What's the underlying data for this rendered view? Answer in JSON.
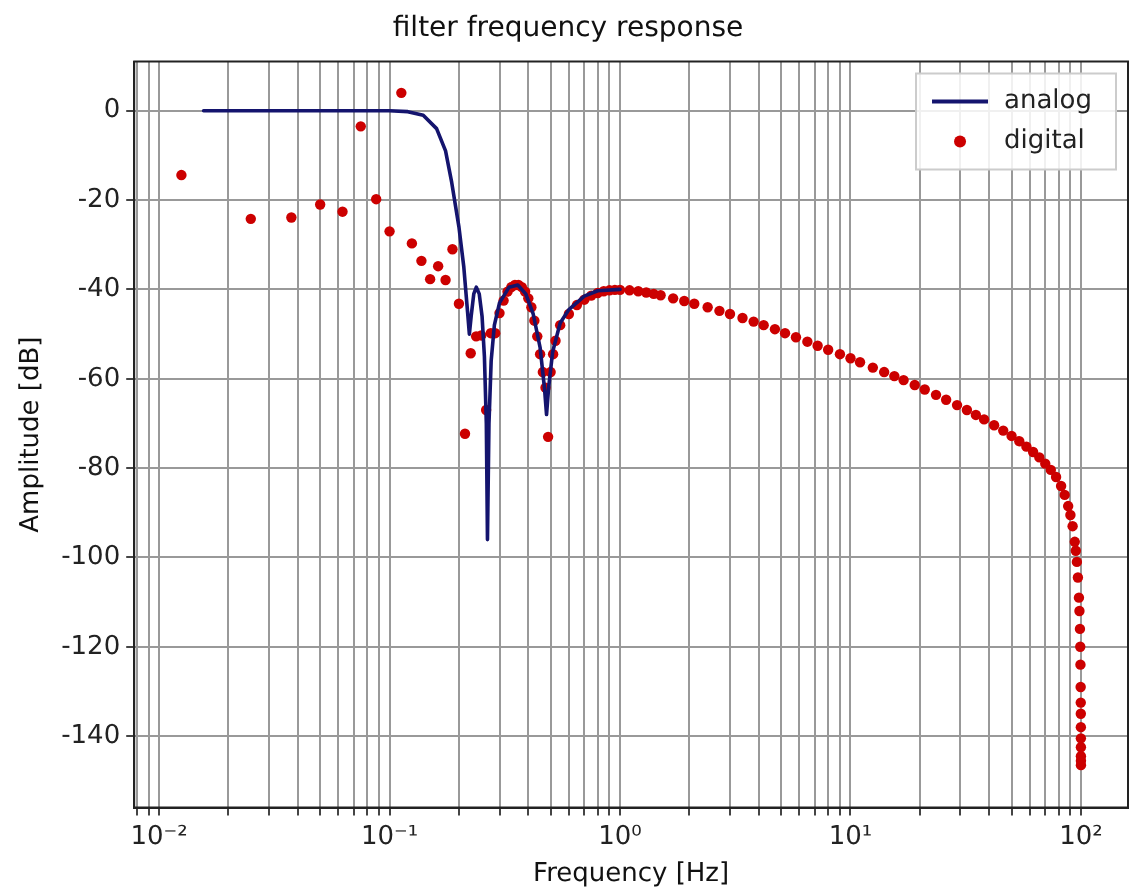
{
  "chart_data": {
    "type": "line",
    "title": "filter frequency response",
    "xlabel": "Frequency [Hz]",
    "ylabel": "Amplitude [dB]",
    "log": "x",
    "grid": true,
    "legend": "top right",
    "xlim": [
      0.0078,
      160
    ],
    "ylim": [
      -156,
      11
    ],
    "xticks": [
      {
        "value": 0.008,
        "label": null
      },
      {
        "value": 0.009,
        "label": null
      },
      {
        "value": 0.01,
        "label": "10⁻²"
      },
      {
        "value": 0.02,
        "label": null
      },
      {
        "value": 0.03,
        "label": null
      },
      {
        "value": 0.04,
        "label": null
      },
      {
        "value": 0.05,
        "label": null
      },
      {
        "value": 0.06,
        "label": null
      },
      {
        "value": 0.07,
        "label": null
      },
      {
        "value": 0.08,
        "label": null
      },
      {
        "value": 0.09,
        "label": null
      },
      {
        "value": 0.1,
        "label": "10⁻¹"
      },
      {
        "value": 0.2,
        "label": null
      },
      {
        "value": 0.3,
        "label": null
      },
      {
        "value": 0.4,
        "label": null
      },
      {
        "value": 0.5,
        "label": null
      },
      {
        "value": 0.6,
        "label": null
      },
      {
        "value": 0.7,
        "label": null
      },
      {
        "value": 0.8,
        "label": null
      },
      {
        "value": 0.9,
        "label": null
      },
      {
        "value": 1,
        "label": "10⁰"
      },
      {
        "value": 2,
        "label": null
      },
      {
        "value": 3,
        "label": null
      },
      {
        "value": 4,
        "label": null
      },
      {
        "value": 5,
        "label": null
      },
      {
        "value": 6,
        "label": null
      },
      {
        "value": 7,
        "label": null
      },
      {
        "value": 8,
        "label": null
      },
      {
        "value": 9,
        "label": null
      },
      {
        "value": 10,
        "label": "10¹"
      },
      {
        "value": 20,
        "label": null
      },
      {
        "value": 30,
        "label": null
      },
      {
        "value": 40,
        "label": null
      },
      {
        "value": 50,
        "label": null
      },
      {
        "value": 60,
        "label": null
      },
      {
        "value": 70,
        "label": null
      },
      {
        "value": 80,
        "label": null
      },
      {
        "value": 90,
        "label": null
      },
      {
        "value": 100,
        "label": "10²"
      }
    ],
    "yticks": [
      0,
      -20,
      -40,
      -60,
      -80,
      -100,
      -120,
      -140
    ],
    "series": [
      {
        "name": "analog",
        "type": "line",
        "color": "#14146e",
        "marker": "none",
        "line_style": "solid",
        "x": [
          0.0156,
          0.05,
          0.1,
          0.12,
          0.14,
          0.16,
          0.175,
          0.186,
          0.2,
          0.21,
          0.218,
          0.222,
          0.226,
          0.232,
          0.238,
          0.245,
          0.252,
          0.258,
          0.263,
          0.266,
          0.27,
          0.276,
          0.285,
          0.3,
          0.33,
          0.36,
          0.39,
          0.42,
          0.45,
          0.47,
          0.48,
          0.49,
          0.51,
          0.55,
          0.6,
          0.7,
          0.8,
          1
        ],
        "values": [
          0,
          0,
          0,
          -0.2,
          -1,
          -4,
          -9,
          -16,
          -26,
          -35,
          -45,
          -50,
          -46,
          -41,
          -39.5,
          -41,
          -46,
          -55,
          -70,
          -96,
          -70,
          -56,
          -48,
          -43,
          -39.5,
          -39,
          -41,
          -45.5,
          -53,
          -62,
          -68,
          -62,
          -54,
          -47.5,
          -44.5,
          -41.5,
          -40.3,
          -40
        ]
      },
      {
        "name": "digital",
        "type": "scatter",
        "color": "#cc0000",
        "marker": "circle",
        "x": [
          0.0125,
          0.025,
          0.0375,
          0.05,
          0.0625,
          0.075,
          0.0875,
          0.1,
          0.1125,
          0.125,
          0.1375,
          0.15,
          0.1625,
          0.175,
          0.1875,
          0.2,
          0.2125,
          0.225,
          0.2375,
          0.25,
          0.2625,
          0.275,
          0.2875,
          0.3,
          0.3125,
          0.325,
          0.3375,
          0.35,
          0.3625,
          0.375,
          0.3875,
          0.4,
          0.4125,
          0.425,
          0.4375,
          0.45,
          0.4625,
          0.475,
          0.4875,
          0.5,
          0.5125,
          0.525,
          0.55,
          0.6,
          0.65,
          0.7,
          0.75,
          0.8,
          0.85,
          0.9,
          0.95,
          1,
          1.1,
          1.2,
          1.3,
          1.4,
          1.5,
          1.7,
          1.9,
          2.1,
          2.4,
          2.7,
          3,
          3.4,
          3.8,
          4.2,
          4.7,
          5.2,
          5.8,
          6.5,
          7.2,
          8,
          9,
          10,
          11,
          12.5,
          14,
          15.5,
          17,
          19,
          21,
          23.5,
          26,
          29,
          32,
          35,
          38,
          42,
          46,
          50,
          54,
          58,
          62,
          66,
          70,
          74,
          78,
          82,
          85,
          88,
          90,
          92,
          94,
          95,
          96,
          97,
          98,
          98.5,
          99,
          99.3,
          99.5,
          99.7,
          99.8,
          99.85,
          99.9,
          99.93,
          99.95,
          99.97,
          99.98,
          99.99
        ],
        "values": [
          -14.4,
          -24.2,
          -23.9,
          -21,
          -22.6,
          -3.5,
          -19.8,
          -27,
          4,
          -29.7,
          -33.6,
          -37.7,
          -34.8,
          -37.9,
          -31,
          -43.2,
          -72.3,
          -54.3,
          -50.5,
          -50.3,
          -67,
          -49.8,
          -49.8,
          -45.3,
          -42.5,
          -40.5,
          -39.5,
          -39,
          -39,
          -39.5,
          -40.5,
          -42,
          -44,
          -47,
          -50.5,
          -54.5,
          -58.5,
          -62,
          -73,
          -58.5,
          -54.5,
          -51.5,
          -48,
          -45.5,
          -43.5,
          -42.3,
          -41.4,
          -40.8,
          -40.4,
          -40.2,
          -40.1,
          -40.1,
          -40.2,
          -40.4,
          -40.7,
          -41,
          -41.3,
          -42,
          -42.6,
          -43.2,
          -44,
          -44.8,
          -45.5,
          -46.4,
          -47.2,
          -48,
          -48.9,
          -49.8,
          -50.7,
          -51.7,
          -52.6,
          -53.5,
          -54.5,
          -55.4,
          -56.3,
          -57.5,
          -58.5,
          -59.4,
          -60.3,
          -61.4,
          -62.4,
          -63.6,
          -64.7,
          -65.9,
          -67,
          -68.1,
          -69.1,
          -70.4,
          -71.6,
          -72.8,
          -74,
          -75.2,
          -76.4,
          -77.6,
          -79,
          -80.4,
          -82,
          -84,
          -86,
          -88.5,
          -90.5,
          -93,
          -96.5,
          -98.5,
          -101,
          -104.5,
          -109,
          -112,
          -116,
          -120,
          -124,
          -129,
          -132.5,
          -135,
          -138,
          -140.5,
          -142.5,
          -144.5,
          -145.5,
          -146.5
        ]
      }
    ]
  }
}
